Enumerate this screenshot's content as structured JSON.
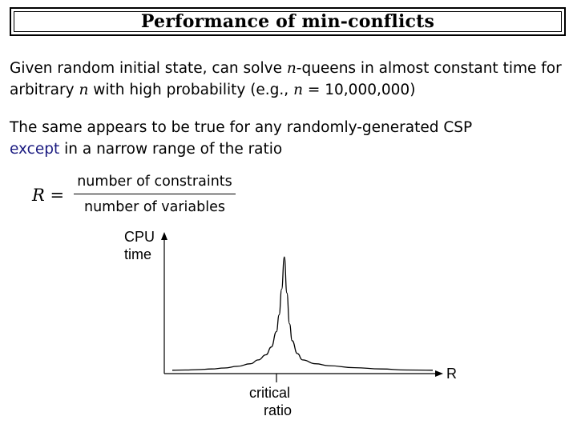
{
  "slide": {
    "title": "Performance of min-conflicts",
    "para1": {
      "line1_a": "Given random initial state, can solve ",
      "line1_var": "n",
      "line1_b": "-queens in almost constant time for",
      "line2_a": "arbitrary ",
      "line2_var": "n",
      "line2_b": " with high probability (e.g., ",
      "line2_var2": "n",
      "line2_eq": " = ",
      "line2_num": "10,000,000",
      "line2_c": ")"
    },
    "para2": {
      "line1": "The same appears to be true for any randomly-generated CSP",
      "line2_highlight": "except",
      "line2_rest": " in a narrow range of the ratio"
    },
    "formula": {
      "lhs": "R =",
      "numerator": "number of constraints",
      "denominator": "number of variables"
    }
  },
  "chart_data": {
    "type": "line",
    "ylabel_line1": "CPU",
    "ylabel_line2": "time",
    "xlabel": "R",
    "annotation_line1": "critical",
    "annotation_line2": "ratio",
    "grid": false,
    "legend": "none",
    "x": [
      0,
      0.05,
      0.1,
      0.15,
      0.2,
      0.25,
      0.3,
      0.33,
      0.36,
      0.38,
      0.4,
      0.41,
      0.42,
      0.43,
      0.44,
      0.45,
      0.46,
      0.48,
      0.5,
      0.55,
      0.6,
      0.7,
      0.8,
      0.9,
      1.0
    ],
    "y": [
      0.02,
      0.022,
      0.025,
      0.03,
      0.037,
      0.05,
      0.07,
      0.1,
      0.14,
      0.2,
      0.32,
      0.45,
      0.65,
      0.9,
      0.62,
      0.38,
      0.25,
      0.15,
      0.1,
      0.07,
      0.055,
      0.04,
      0.03,
      0.022,
      0.02
    ],
    "critical_x": 0.43,
    "xlim": [
      0,
      1
    ],
    "ylim": [
      0,
      1
    ]
  }
}
